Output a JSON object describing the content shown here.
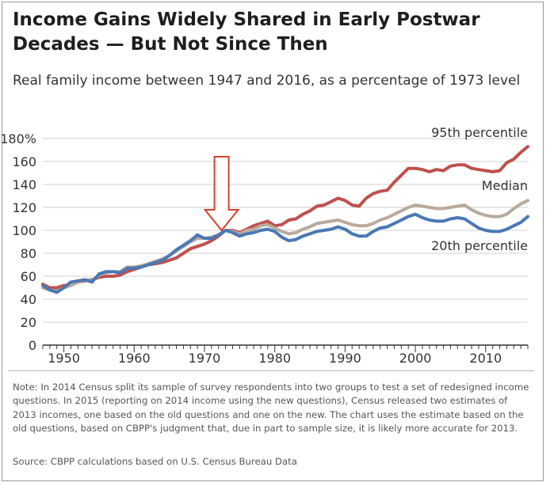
{
  "title": "Income Gains Widely Shared in Early Postwar Decades — But Not Since Then",
  "subtitle": "Real family income between 1947 and 2016, as a percentage of 1973 level",
  "note": "Note: In 2014 Census split its sample of survey respondents into two groups to test a set of redesigned income questions. In 2015 (reporting on 2014 income using the new questions), Census released two estimates of 2013 incomes, one based on the old questions and one on the new. The chart uses the estimate based on the old questions, based on CBPP's judgment that, due in part to sample size, it is likely more accurate for 2013.",
  "source": "Source: CBPP calculations based on U.S. Census Bureau Data",
  "colors": {
    "p95": "#c0504d",
    "median": "#b9aa9b",
    "p20": "#4a78b5",
    "arrow": "#d2412e",
    "grid": "#d0d0d0",
    "axis": "#333333"
  },
  "chart_data": {
    "type": "line",
    "title": "Income Gains Widely Shared in Early Postwar Decades — But Not Since Then",
    "xlabel": "",
    "ylabel": "",
    "xlim": [
      1947,
      2016
    ],
    "ylim": [
      0,
      180
    ],
    "x_ticks": [
      1950,
      1960,
      1970,
      1980,
      1990,
      2000,
      2010
    ],
    "y_ticks": [
      0,
      20,
      40,
      60,
      80,
      100,
      120,
      140,
      160,
      180
    ],
    "y_tick_labels": [
      "0",
      "20",
      "40",
      "60",
      "80",
      "100",
      "120",
      "140",
      "160",
      "180%"
    ],
    "grid": "horizontal",
    "annotation": {
      "type": "arrow",
      "x": 1973,
      "direction": "down"
    },
    "x": [
      1947,
      1948,
      1949,
      1950,
      1951,
      1952,
      1953,
      1954,
      1955,
      1956,
      1957,
      1958,
      1959,
      1960,
      1961,
      1962,
      1963,
      1964,
      1965,
      1966,
      1967,
      1968,
      1969,
      1970,
      1971,
      1972,
      1973,
      1974,
      1975,
      1976,
      1977,
      1978,
      1979,
      1980,
      1981,
      1982,
      1983,
      1984,
      1985,
      1986,
      1987,
      1988,
      1989,
      1990,
      1991,
      1992,
      1993,
      1994,
      1995,
      1996,
      1997,
      1998,
      1999,
      2000,
      2001,
      2002,
      2003,
      2004,
      2005,
      2006,
      2007,
      2008,
      2009,
      2010,
      2011,
      2012,
      2013,
      2014,
      2015,
      2016
    ],
    "series": [
      {
        "name": "95th percentile",
        "color": "#c0504d",
        "values": [
          53,
          50,
          50,
          52,
          52,
          55,
          56,
          57,
          59,
          60,
          60,
          61,
          64,
          66,
          68,
          70,
          71,
          72,
          74,
          76,
          80,
          84,
          86,
          88,
          91,
          95,
          100,
          100,
          98,
          101,
          104,
          106,
          108,
          104,
          105,
          109,
          110,
          114,
          117,
          121,
          122,
          125,
          128,
          126,
          122,
          121,
          128,
          132,
          134,
          135,
          142,
          148,
          154,
          154,
          153,
          151,
          153,
          152,
          156,
          157,
          157,
          154,
          153,
          152,
          151,
          152,
          159,
          162,
          168,
          173
        ]
      },
      {
        "name": "Median",
        "color": "#b9aa9b",
        "values": [
          50,
          48,
          47,
          50,
          52,
          55,
          57,
          56,
          61,
          63,
          64,
          64,
          68,
          68,
          69,
          71,
          73,
          75,
          78,
          82,
          86,
          90,
          93,
          93,
          94,
          96,
          100,
          99,
          97,
          100,
          101,
          104,
          105,
          102,
          99,
          97,
          98,
          101,
          103,
          106,
          107,
          108,
          109,
          107,
          105,
          104,
          104,
          106,
          109,
          111,
          114,
          117,
          120,
          122,
          121,
          120,
          119,
          119,
          120,
          121,
          122,
          118,
          115,
          113,
          112,
          112,
          114,
          119,
          123,
          126
        ]
      },
      {
        "name": "20th percentile",
        "color": "#4a78b5",
        "values": [
          52,
          48,
          46,
          50,
          55,
          56,
          57,
          55,
          62,
          64,
          64,
          63,
          67,
          67,
          68,
          70,
          72,
          74,
          78,
          83,
          87,
          91,
          96,
          93,
          93,
          96,
          100,
          98,
          95,
          97,
          98,
          100,
          101,
          99,
          94,
          91,
          92,
          95,
          97,
          99,
          100,
          101,
          103,
          101,
          97,
          95,
          95,
          99,
          102,
          103,
          106,
          109,
          112,
          114,
          111,
          109,
          108,
          108,
          110,
          111,
          110,
          106,
          102,
          100,
          99,
          99,
          101,
          104,
          107,
          112
        ]
      }
    ]
  }
}
